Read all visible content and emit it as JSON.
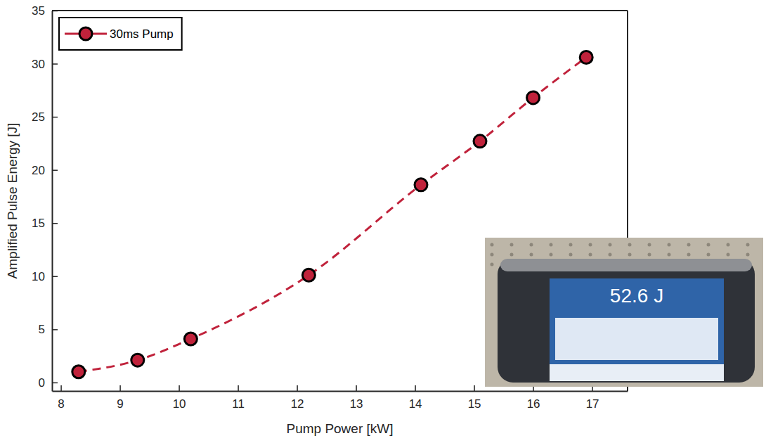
{
  "chart_data": {
    "type": "line",
    "x_label": "Pump Power [kW]",
    "y_label": "Amplified Pulse Energy [J]",
    "x": [
      8.3,
      9.3,
      10.2,
      12.2,
      14.1,
      15.1,
      16.0,
      16.9
    ],
    "series": [
      {
        "name": "30ms Pump",
        "color": "#c0223b",
        "marker": "circle",
        "line_style": "dashed",
        "values": [
          1.0,
          2.1,
          4.1,
          10.1,
          18.6,
          22.7,
          26.8,
          30.6
        ]
      }
    ],
    "xlim": [
      7.85,
      17.6
    ],
    "xticks": [
      8,
      9,
      10,
      11,
      12,
      13,
      14,
      15,
      16,
      17
    ],
    "ylim": [
      -0.8,
      35
    ],
    "yticks": [
      0,
      5,
      10,
      15,
      20,
      25,
      30,
      35
    ],
    "legend": "upper left",
    "annotations": [
      "52.6 J"
    ]
  }
}
